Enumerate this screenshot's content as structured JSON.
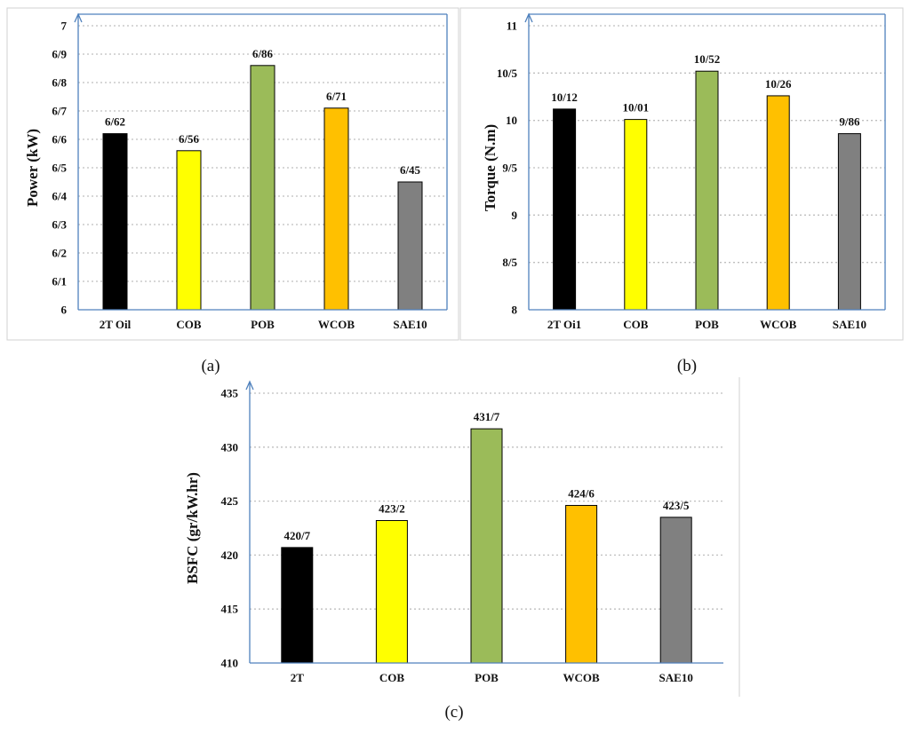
{
  "chart_data": [
    {
      "type": "bar",
      "caption": "(a)",
      "ylabel": "Power (kW)",
      "categories": [
        "2T Oil",
        "COB",
        "POB",
        "WCOB",
        "SAE10"
      ],
      "values": [
        6.62,
        6.56,
        6.86,
        6.71,
        6.45
      ],
      "value_labels": [
        "6/62",
        "6/56",
        "6/86",
        "6/71",
        "6/45"
      ],
      "ylim": [
        6,
        7
      ],
      "yticks": [
        6,
        6.1,
        6.2,
        6.3,
        6.4,
        6.5,
        6.6,
        6.7,
        6.8,
        6.9,
        7
      ],
      "ytick_labels": [
        "6",
        "6/1",
        "6/2",
        "6/3",
        "6/4",
        "6/5",
        "6/6",
        "6/7",
        "6/8",
        "6/9",
        "7"
      ],
      "colors": [
        "#000000",
        "#ffff00",
        "#9bbb59",
        "#ffc000",
        "#808080"
      ],
      "grid": true
    },
    {
      "type": "bar",
      "caption": "(b)",
      "ylabel": "Torque (N.m)",
      "categories": [
        "2T Oi1",
        "COB",
        "POB",
        "WCOB",
        "SAE10"
      ],
      "values": [
        10.12,
        10.01,
        10.52,
        10.26,
        9.86
      ],
      "value_labels": [
        "10/12",
        "10/01",
        "10/52",
        "10/26",
        "9/86"
      ],
      "ylim": [
        8,
        11
      ],
      "yticks": [
        8,
        8.5,
        9,
        9.5,
        10,
        10.5,
        11
      ],
      "ytick_labels": [
        "8",
        "8/5",
        "9",
        "9/5",
        "10",
        "10/5",
        "11"
      ],
      "colors": [
        "#000000",
        "#ffff00",
        "#9bbb59",
        "#ffc000",
        "#808080"
      ],
      "grid": true
    },
    {
      "type": "bar",
      "caption": "(c)",
      "ylabel": "BSFC (gr/kW.hr)",
      "categories": [
        "2T",
        "COB",
        "POB",
        "WCOB",
        "SAE10"
      ],
      "values": [
        420.7,
        423.2,
        431.7,
        424.6,
        423.5
      ],
      "value_labels": [
        "420/7",
        "423/2",
        "431/7",
        "424/6",
        "423/5"
      ],
      "ylim": [
        410,
        435
      ],
      "yticks": [
        410,
        415,
        420,
        425,
        430,
        435
      ],
      "ytick_labels": [
        "410",
        "415",
        "420",
        "425",
        "430",
        "435"
      ],
      "colors": [
        "#000000",
        "#ffff00",
        "#9bbb59",
        "#ffc000",
        "#808080"
      ],
      "grid": true
    }
  ]
}
